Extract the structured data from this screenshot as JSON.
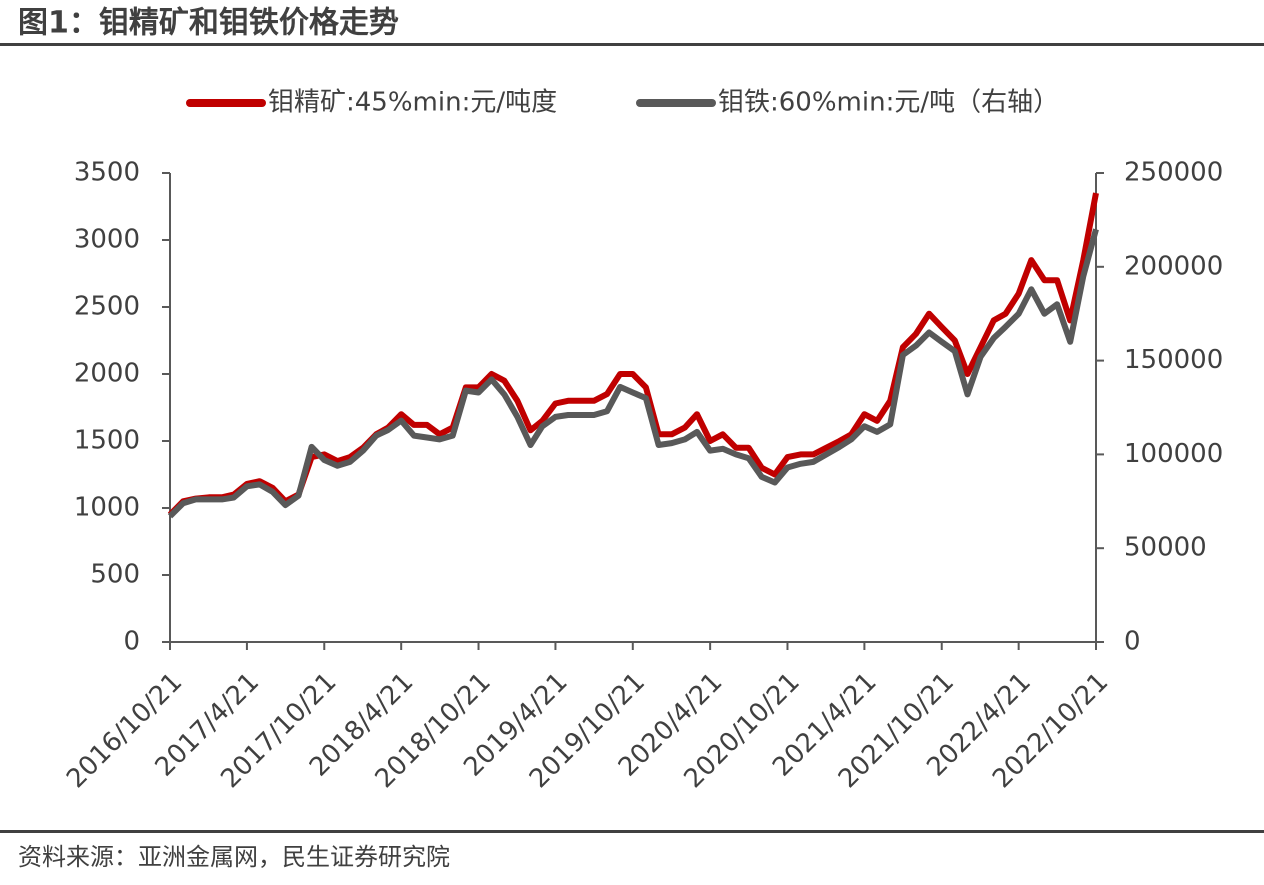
{
  "title": "图1：钼精矿和钼铁价格走势",
  "source": "资料来源：亚洲金属网，民生证券研究院",
  "chart_data": {
    "type": "line",
    "x": [
      "2016/10/21",
      "2016/11/21",
      "2016/12/21",
      "2017/1/21",
      "2017/2/21",
      "2017/3/21",
      "2017/4/21",
      "2017/5/21",
      "2017/6/21",
      "2017/7/21",
      "2017/8/21",
      "2017/9/21",
      "2017/10/21",
      "2017/11/21",
      "2017/12/21",
      "2018/1/21",
      "2018/2/21",
      "2018/3/21",
      "2018/4/21",
      "2018/5/21",
      "2018/6/21",
      "2018/7/21",
      "2018/8/21",
      "2018/9/21",
      "2018/10/21",
      "2018/11/21",
      "2018/12/21",
      "2019/1/21",
      "2019/2/21",
      "2019/3/21",
      "2019/4/21",
      "2019/5/21",
      "2019/6/21",
      "2019/7/21",
      "2019/8/21",
      "2019/9/21",
      "2019/10/21",
      "2019/11/21",
      "2019/12/21",
      "2020/1/21",
      "2020/2/21",
      "2020/3/21",
      "2020/4/21",
      "2020/5/21",
      "2020/6/21",
      "2020/7/21",
      "2020/8/21",
      "2020/9/21",
      "2020/10/21",
      "2020/11/21",
      "2020/12/21",
      "2021/1/21",
      "2021/2/21",
      "2021/3/21",
      "2021/4/21",
      "2021/5/21",
      "2021/6/21",
      "2021/7/21",
      "2021/8/21",
      "2021/9/21",
      "2021/10/21",
      "2021/11/21",
      "2021/12/21",
      "2022/1/21",
      "2022/2/21",
      "2022/3/21",
      "2022/4/21",
      "2022/5/21",
      "2022/6/21",
      "2022/7/21",
      "2022/8/21",
      "2022/9/21",
      "2022/10/21"
    ],
    "series": [
      {
        "name": "钼精矿:45%min:元/吨度",
        "color": "#c00000",
        "axis": "y",
        "values": [
          950,
          1050,
          1070,
          1080,
          1080,
          1100,
          1180,
          1200,
          1150,
          1050,
          1100,
          1380,
          1400,
          1350,
          1380,
          1450,
          1550,
          1600,
          1700,
          1620,
          1620,
          1550,
          1600,
          1900,
          1900,
          2000,
          1950,
          1800,
          1580,
          1650,
          1780,
          1800,
          1800,
          1800,
          1850,
          2000,
          2000,
          1900,
          1550,
          1550,
          1600,
          1700,
          1500,
          1550,
          1450,
          1450,
          1300,
          1250,
          1380,
          1400,
          1400,
          1450,
          1500,
          1550,
          1700,
          1650,
          1800,
          2200,
          2300,
          2450,
          2350,
          2250,
          2000,
          2200,
          2400,
          2450,
          2600,
          2850,
          2700,
          2700,
          2400,
          2850,
          3350
        ]
      },
      {
        "name": "钼铁:60%min:元/吨（右轴）",
        "color": "#595959",
        "axis": "y2",
        "values": [
          67000,
          74000,
          76000,
          76000,
          76000,
          77000,
          83000,
          84000,
          80000,
          73000,
          78000,
          104000,
          97000,
          94000,
          96000,
          102000,
          110000,
          113000,
          118000,
          110000,
          109000,
          108000,
          110000,
          134000,
          133000,
          140000,
          132000,
          120000,
          105000,
          115000,
          120000,
          121000,
          121000,
          121000,
          123000,
          136000,
          133000,
          130000,
          105000,
          106000,
          108000,
          112000,
          102000,
          103000,
          100000,
          98000,
          88000,
          85000,
          93000,
          95000,
          96000,
          100000,
          104000,
          108000,
          115000,
          112000,
          116000,
          153000,
          158000,
          165000,
          160000,
          155000,
          132000,
          152000,
          162000,
          168000,
          175000,
          188000,
          175000,
          180000,
          160000,
          195000,
          220000
        ]
      }
    ],
    "xticks": [
      "2016/10/21",
      "2017/4/21",
      "2017/10/21",
      "2018/4/21",
      "2018/10/21",
      "2019/4/21",
      "2019/10/21",
      "2020/4/21",
      "2020/10/21",
      "2021/4/21",
      "2021/10/21",
      "2022/4/21",
      "2022/10/21"
    ],
    "ylim": [
      0,
      3500
    ],
    "yticks": [
      0,
      500,
      1000,
      1500,
      2000,
      2500,
      3000,
      3500
    ],
    "y2lim": [
      0,
      250000
    ],
    "y2ticks": [
      0,
      50000,
      100000,
      150000,
      200000,
      250000
    ],
    "legend": "top"
  }
}
